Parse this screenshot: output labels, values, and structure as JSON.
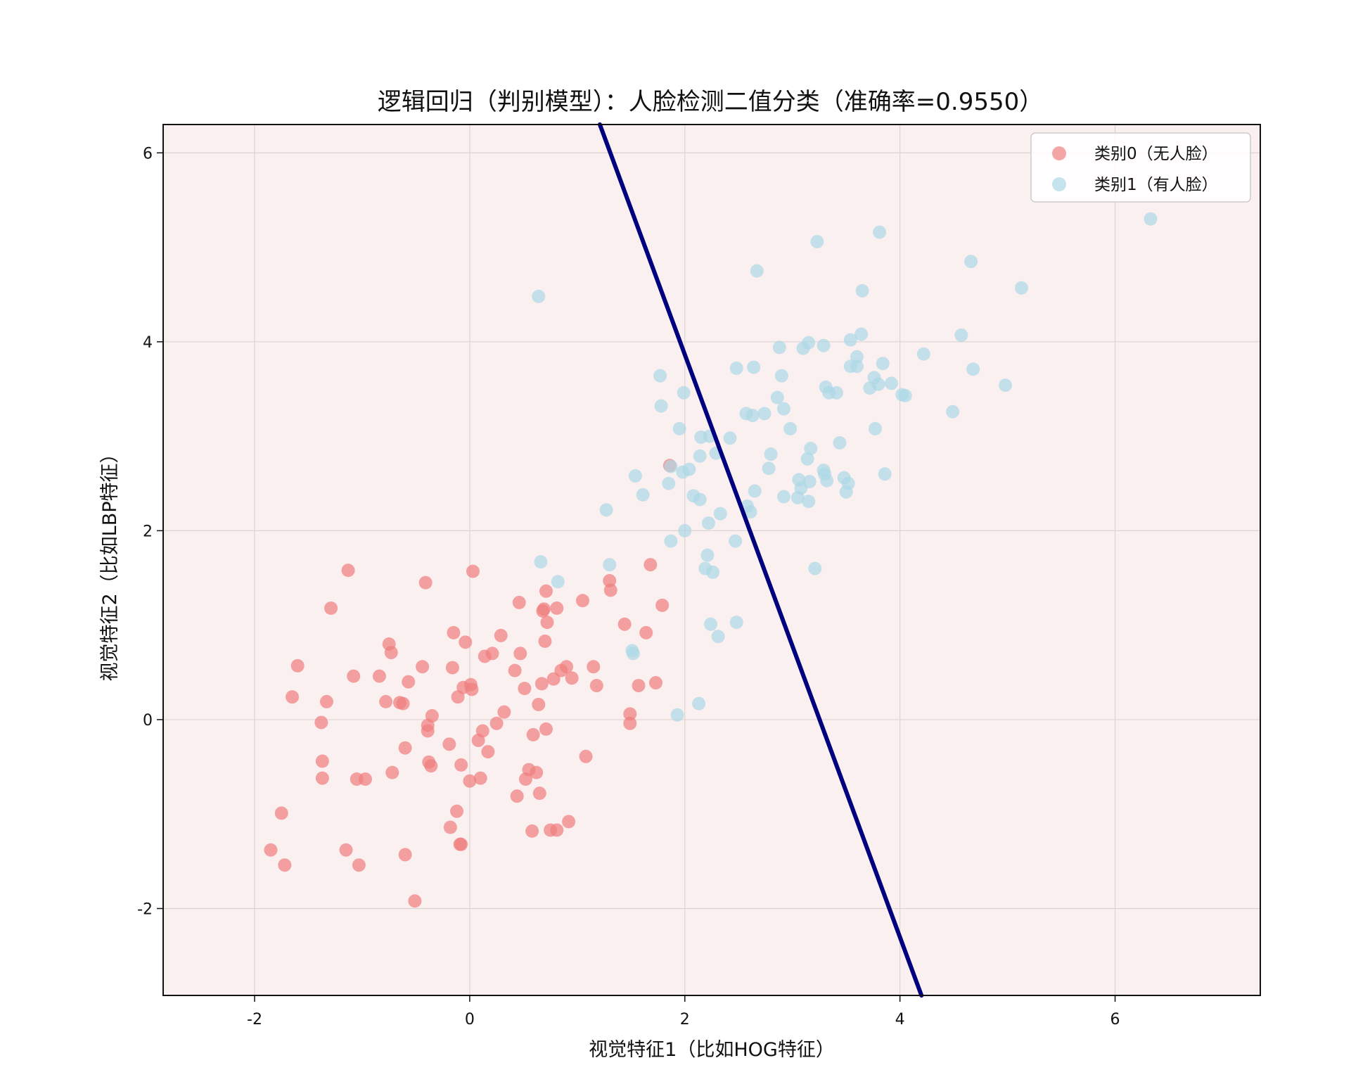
{
  "chart_data": {
    "type": "scatter",
    "title": "逻辑回归（判别模型）：人脸检测二值分类（准确率=0.9550）",
    "xlabel": "视觉特征1（比如HOG特征）",
    "ylabel": "视觉特征2（比如LBP特征）",
    "xlim": [
      -2.85,
      7.35
    ],
    "ylim": [
      -2.92,
      6.3
    ],
    "xticks": [
      -2,
      0,
      2,
      4,
      6
    ],
    "yticks": [
      -2,
      0,
      2,
      4,
      6
    ],
    "grid": true,
    "legend_position": "top-right",
    "background_color": "#fbf0f0",
    "decision_boundary": {
      "color": "#00007f",
      "points": [
        [
          1.21,
          6.3
        ],
        [
          4.2,
          -2.92
        ]
      ]
    },
    "series": [
      {
        "name": "类别0（无人脸）",
        "color": "#f08080",
        "points": [
          [
            -1.85,
            -1.38
          ],
          [
            -1.72,
            -1.54
          ],
          [
            -1.75,
            -0.99
          ],
          [
            -1.65,
            0.24
          ],
          [
            -1.6,
            0.57
          ],
          [
            -1.38,
            -0.03
          ],
          [
            -1.37,
            -0.44
          ],
          [
            -1.37,
            -0.62
          ],
          [
            -1.33,
            0.19
          ],
          [
            -1.29,
            1.18
          ],
          [
            -1.15,
            -1.38
          ],
          [
            -1.13,
            1.58
          ],
          [
            -1.08,
            0.46
          ],
          [
            -1.05,
            -0.63
          ],
          [
            -1.03,
            -1.54
          ],
          [
            -0.97,
            -0.63
          ],
          [
            -0.84,
            0.46
          ],
          [
            -0.78,
            0.19
          ],
          [
            -0.75,
            0.8
          ],
          [
            -0.73,
            0.71
          ],
          [
            -0.72,
            -0.56
          ],
          [
            -0.65,
            0.18
          ],
          [
            -0.62,
            0.17
          ],
          [
            -0.6,
            -1.43
          ],
          [
            -0.6,
            -0.3
          ],
          [
            -0.57,
            0.4
          ],
          [
            -0.51,
            -1.92
          ],
          [
            -0.44,
            0.56
          ],
          [
            -0.41,
            1.45
          ],
          [
            -0.39,
            -0.06
          ],
          [
            -0.39,
            -0.12
          ],
          [
            -0.38,
            -0.45
          ],
          [
            -0.36,
            -0.49
          ],
          [
            -0.35,
            0.04
          ],
          [
            -0.19,
            -0.26
          ],
          [
            -0.18,
            -1.14
          ],
          [
            -0.16,
            0.55
          ],
          [
            -0.15,
            0.92
          ],
          [
            -0.12,
            -0.97
          ],
          [
            -0.11,
            0.24
          ],
          [
            -0.09,
            -1.32
          ],
          [
            -0.08,
            -1.32
          ],
          [
            -0.08,
            -0.48
          ],
          [
            -0.06,
            0.34
          ],
          [
            -0.04,
            0.82
          ],
          [
            0.0,
            -0.65
          ],
          [
            0.01,
            0.37
          ],
          [
            0.02,
            0.32
          ],
          [
            0.03,
            1.57
          ],
          [
            0.08,
            -0.22
          ],
          [
            0.1,
            -0.62
          ],
          [
            0.12,
            -0.12
          ],
          [
            0.14,
            0.67
          ],
          [
            0.17,
            -0.34
          ],
          [
            0.21,
            0.7
          ],
          [
            0.25,
            -0.04
          ],
          [
            0.29,
            0.89
          ],
          [
            0.32,
            0.08
          ],
          [
            0.42,
            0.52
          ],
          [
            0.44,
            -0.81
          ],
          [
            0.46,
            1.24
          ],
          [
            0.47,
            0.7
          ],
          [
            0.51,
            0.33
          ],
          [
            0.52,
            -0.63
          ],
          [
            0.55,
            -0.53
          ],
          [
            0.58,
            -1.18
          ],
          [
            0.59,
            -0.16
          ],
          [
            0.62,
            -0.56
          ],
          [
            0.64,
            0.16
          ],
          [
            0.65,
            -0.78
          ],
          [
            0.67,
            0.38
          ],
          [
            0.68,
            1.15
          ],
          [
            0.69,
            1.17
          ],
          [
            0.7,
            0.83
          ],
          [
            0.71,
            -0.1
          ],
          [
            0.71,
            1.36
          ],
          [
            0.72,
            1.03
          ],
          [
            0.75,
            -1.17
          ],
          [
            0.78,
            0.43
          ],
          [
            0.81,
            -1.17
          ],
          [
            0.81,
            1.18
          ],
          [
            0.85,
            0.52
          ],
          [
            0.9,
            0.56
          ],
          [
            0.95,
            0.44
          ],
          [
            0.92,
            -1.08
          ],
          [
            1.05,
            1.26
          ],
          [
            1.08,
            -0.39
          ],
          [
            1.15,
            0.56
          ],
          [
            1.18,
            0.36
          ],
          [
            1.3,
            1.47
          ],
          [
            1.31,
            1.37
          ],
          [
            1.44,
            1.01
          ],
          [
            1.49,
            0.06
          ],
          [
            1.49,
            -0.04
          ],
          [
            1.57,
            0.36
          ],
          [
            1.64,
            0.92
          ],
          [
            1.68,
            1.64
          ],
          [
            1.73,
            0.39
          ],
          [
            1.79,
            1.21
          ],
          [
            1.86,
            2.69
          ]
        ]
      },
      {
        "name": "类别1（有人脸）",
        "color": "#add8e6",
        "points": [
          [
            0.64,
            4.48
          ],
          [
            0.66,
            1.67
          ],
          [
            0.82,
            1.46
          ],
          [
            1.27,
            2.22
          ],
          [
            1.3,
            1.64
          ],
          [
            1.51,
            0.73
          ],
          [
            1.52,
            0.7
          ],
          [
            1.54,
            2.58
          ],
          [
            1.61,
            2.38
          ],
          [
            1.77,
            3.64
          ],
          [
            1.78,
            3.32
          ],
          [
            1.85,
            2.5
          ],
          [
            1.87,
            1.89
          ],
          [
            1.87,
            2.68
          ],
          [
            1.93,
            0.05
          ],
          [
            1.95,
            3.08
          ],
          [
            1.98,
            2.62
          ],
          [
            1.99,
            3.46
          ],
          [
            2.0,
            2.0
          ],
          [
            2.04,
            2.65
          ],
          [
            2.08,
            2.37
          ],
          [
            2.13,
            0.17
          ],
          [
            2.14,
            2.33
          ],
          [
            2.14,
            2.79
          ],
          [
            2.15,
            2.99
          ],
          [
            2.19,
            1.6
          ],
          [
            2.21,
            1.74
          ],
          [
            2.22,
            2.08
          ],
          [
            2.23,
            3.0
          ],
          [
            2.24,
            1.01
          ],
          [
            2.26,
            1.56
          ],
          [
            2.29,
            2.82
          ],
          [
            2.31,
            0.88
          ],
          [
            2.33,
            2.18
          ],
          [
            2.42,
            2.98
          ],
          [
            2.47,
            1.89
          ],
          [
            2.48,
            3.72
          ],
          [
            2.48,
            1.03
          ],
          [
            2.57,
            3.24
          ],
          [
            2.58,
            2.26
          ],
          [
            2.61,
            2.2
          ],
          [
            2.63,
            3.22
          ],
          [
            2.64,
            3.73
          ],
          [
            2.65,
            2.42
          ],
          [
            2.67,
            4.75
          ],
          [
            2.74,
            3.24
          ],
          [
            2.78,
            2.66
          ],
          [
            2.8,
            2.81
          ],
          [
            2.86,
            3.41
          ],
          [
            2.88,
            3.94
          ],
          [
            2.9,
            3.64
          ],
          [
            2.92,
            3.29
          ],
          [
            2.92,
            2.36
          ],
          [
            2.98,
            3.08
          ],
          [
            3.05,
            2.35
          ],
          [
            3.06,
            2.54
          ],
          [
            3.08,
            2.45
          ],
          [
            3.1,
            3.93
          ],
          [
            3.14,
            2.76
          ],
          [
            3.15,
            2.31
          ],
          [
            3.15,
            3.99
          ],
          [
            3.16,
            2.52
          ],
          [
            3.17,
            2.87
          ],
          [
            3.21,
            1.6
          ],
          [
            3.23,
            5.06
          ],
          [
            3.29,
            3.96
          ],
          [
            3.29,
            2.64
          ],
          [
            3.3,
            2.6
          ],
          [
            3.31,
            3.52
          ],
          [
            3.32,
            2.53
          ],
          [
            3.34,
            3.46
          ],
          [
            3.41,
            3.46
          ],
          [
            3.44,
            2.93
          ],
          [
            3.48,
            2.56
          ],
          [
            3.5,
            2.41
          ],
          [
            3.52,
            2.5
          ],
          [
            3.54,
            4.02
          ],
          [
            3.54,
            3.74
          ],
          [
            3.6,
            3.74
          ],
          [
            3.6,
            3.84
          ],
          [
            3.64,
            4.08
          ],
          [
            3.65,
            4.54
          ],
          [
            3.72,
            3.51
          ],
          [
            3.76,
            3.62
          ],
          [
            3.77,
            3.08
          ],
          [
            3.8,
            3.55
          ],
          [
            3.81,
            5.16
          ],
          [
            3.84,
            3.77
          ],
          [
            3.86,
            2.6
          ],
          [
            3.92,
            3.56
          ],
          [
            4.02,
            3.44
          ],
          [
            4.05,
            3.43
          ],
          [
            4.22,
            3.87
          ],
          [
            4.49,
            3.26
          ],
          [
            4.57,
            4.07
          ],
          [
            4.66,
            4.85
          ],
          [
            4.68,
            3.71
          ],
          [
            4.98,
            3.54
          ],
          [
            5.13,
            4.57
          ],
          [
            6.33,
            5.3
          ]
        ]
      }
    ]
  }
}
